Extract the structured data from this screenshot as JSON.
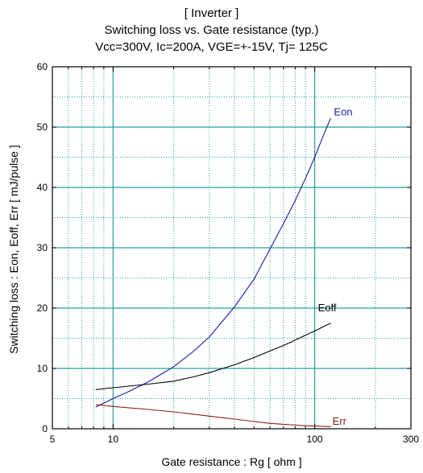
{
  "chart_data": {
    "type": "line",
    "title": [
      "[ Inverter ]",
      "Switching loss  vs.  Gate resistance (typ.)",
      "Vcc=300V, Ic=200A, VGE=+-15V, Tj= 125C"
    ],
    "xlabel": "Gate resistance  :  Rg  [ ohm ]",
    "ylabel": "Switching loss  :  Eon, Eoff, Err  [ mJ/pulse ]",
    "x_scale": "log",
    "xlim": [
      5,
      300
    ],
    "ylim": [
      0,
      60
    ],
    "x_ticks": [
      5,
      10,
      100,
      300
    ],
    "y_ticks": [
      0,
      10,
      20,
      30,
      40,
      50,
      60
    ],
    "grid": true,
    "series": [
      {
        "name": "Eon",
        "color": "#1a1aa6",
        "x": [
          8.2,
          10,
          12,
          15,
          20,
          25,
          30,
          40,
          50,
          60,
          70,
          80,
          90,
          100,
          110,
          120
        ],
        "y": [
          3.6,
          5.0,
          6.2,
          7.8,
          10.3,
          12.8,
          15.2,
          20.2,
          24.8,
          29.8,
          34.0,
          37.8,
          41.5,
          45.0,
          48.5,
          51.5
        ]
      },
      {
        "name": "Eoff",
        "color": "#000000",
        "x": [
          8.2,
          10,
          15,
          20,
          25,
          30,
          40,
          50,
          60,
          70,
          80,
          90,
          100,
          110,
          120
        ],
        "y": [
          6.5,
          6.8,
          7.4,
          7.9,
          8.6,
          9.3,
          10.6,
          11.8,
          12.9,
          13.8,
          14.7,
          15.5,
          16.2,
          16.9,
          17.5
        ]
      },
      {
        "name": "Err",
        "color": "#8b1a1a",
        "x": [
          8.2,
          10,
          15,
          20,
          30,
          40,
          50,
          60,
          70,
          80,
          90,
          100,
          110,
          120
        ],
        "y": [
          4.0,
          3.7,
          3.2,
          2.8,
          2.1,
          1.6,
          1.2,
          0.9,
          0.75,
          0.6,
          0.5,
          0.45,
          0.4,
          0.35
        ]
      }
    ]
  }
}
